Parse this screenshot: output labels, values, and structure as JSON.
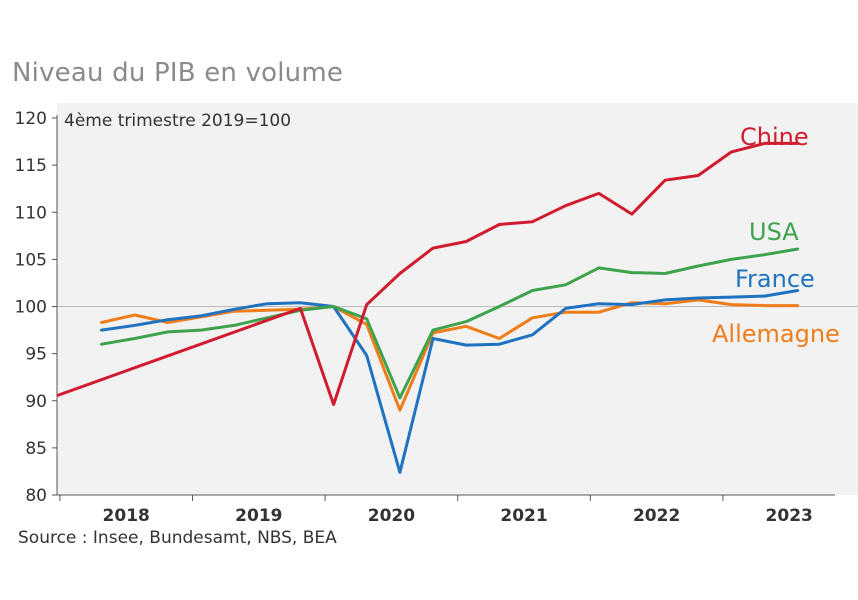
{
  "chart_data": {
    "type": "line",
    "title": "Niveau du PIB en volume",
    "subtitle": "4ème trimestre 2019=100",
    "source": "Source : Insee, Bundesamt, NBS, BEA",
    "ylim": [
      80,
      120
    ],
    "yticks": [
      80,
      85,
      90,
      95,
      100,
      105,
      110,
      115,
      120
    ],
    "year_labels": [
      "2018",
      "2019",
      "2020",
      "2021",
      "2022",
      "2023"
    ],
    "x_quarter_range": [
      0,
      23
    ],
    "reference_line": 100,
    "colors": {
      "Chine": "#d01c2e",
      "USA": "#3fa34d",
      "France": "#1f73c0",
      "Allemagne": "#ee7d1a"
    },
    "series": [
      {
        "name": "Chine",
        "x": [
          -0.5,
          6.8,
          7.8,
          8.8,
          9.8,
          10.8,
          11.8,
          12.8,
          13.8,
          14.8,
          15.8,
          16.8,
          17.8,
          18.8,
          19.8,
          20.8,
          21.8
        ],
        "values": [
          90.6,
          99.8,
          89.6,
          100.2,
          103.5,
          106.2,
          106.9,
          108.7,
          109.0,
          110.7,
          112.0,
          109.8,
          113.4,
          113.9,
          116.4,
          117.3,
          117.3
        ]
      },
      {
        "name": "USA",
        "x": [
          0.8,
          1.8,
          2.8,
          3.8,
          4.8,
          5.8,
          6.8,
          7.8,
          8.8,
          9.8,
          10.8,
          11.8,
          12.8,
          13.8,
          14.8,
          15.8,
          16.8,
          17.8,
          18.8,
          19.8,
          20.8,
          21.8
        ],
        "values": [
          96.0,
          96.6,
          97.3,
          97.5,
          98.0,
          98.8,
          99.6,
          100.0,
          98.7,
          90.3,
          97.5,
          98.4,
          100.0,
          101.7,
          102.3,
          104.1,
          103.6,
          103.5,
          104.3,
          105.0,
          105.5,
          106.1
        ]
      },
      {
        "name": "France",
        "x": [
          0.8,
          1.8,
          2.8,
          3.8,
          4.8,
          5.8,
          6.8,
          7.8,
          8.8,
          9.8,
          10.8,
          11.8,
          12.8,
          13.8,
          14.8,
          15.8,
          16.8,
          17.8,
          18.8,
          19.8,
          20.8,
          21.8
        ],
        "values": [
          97.5,
          98.0,
          98.6,
          99.0,
          99.7,
          100.3,
          100.4,
          100.0,
          94.8,
          82.4,
          96.6,
          95.9,
          96.0,
          97.0,
          99.8,
          100.3,
          100.2,
          100.7,
          100.9,
          101.0,
          101.1,
          101.7
        ]
      },
      {
        "name": "Allemagne",
        "x": [
          0.8,
          1.8,
          2.8,
          3.8,
          4.8,
          5.8,
          6.8,
          7.8,
          8.8,
          9.8,
          10.8,
          11.8,
          12.8,
          13.8,
          14.8,
          15.8,
          16.8,
          17.8,
          18.8,
          19.8,
          20.8,
          21.8
        ],
        "values": [
          98.3,
          99.1,
          98.3,
          98.9,
          99.5,
          99.6,
          99.7,
          100.0,
          98.1,
          89.0,
          97.2,
          97.9,
          96.6,
          98.8,
          99.4,
          99.4,
          100.4,
          100.3,
          100.7,
          100.2,
          100.1,
          100.1
        ]
      }
    ],
    "end_labels": [
      "Chine",
      "USA",
      "France",
      "Allemagne"
    ]
  }
}
